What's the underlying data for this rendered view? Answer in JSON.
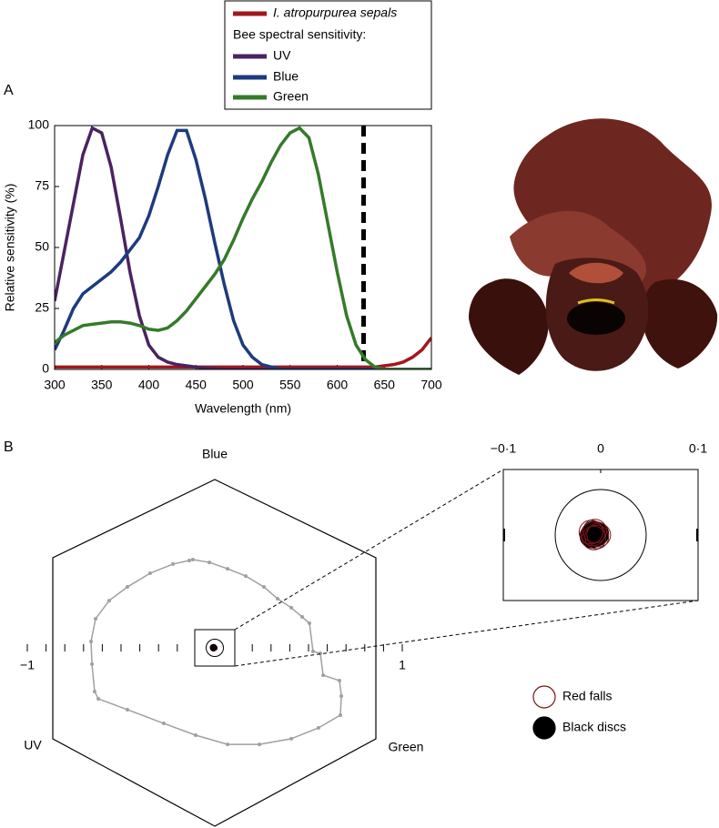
{
  "panels": [
    "A",
    "B"
  ],
  "chart_data": [
    {
      "type": "line",
      "xlabel": "Wavelength (nm)",
      "ylabel": "Relative sensitivity (%)",
      "legend_title": "Bee spectral sensitivity:",
      "x": [
        300,
        310,
        320,
        330,
        340,
        350,
        360,
        370,
        380,
        390,
        400,
        410,
        420,
        430,
        440,
        450,
        460,
        470,
        480,
        490,
        500,
        510,
        520,
        530,
        540,
        550,
        560,
        570,
        580,
        590,
        600,
        610,
        620,
        630,
        640,
        650,
        660,
        670,
        680,
        690,
        700
      ],
      "series": [
        {
          "name": "I. atropurpurea sepals",
          "color": "#a3161b",
          "values": [
            1,
            1,
            1,
            1,
            1,
            1,
            1,
            1,
            1,
            1,
            1,
            1,
            1,
            1,
            1,
            1,
            1,
            1,
            1,
            1,
            1,
            1,
            1,
            1,
            1,
            1,
            1,
            1,
            1,
            1,
            1,
            1,
            1,
            1,
            1,
            1.5,
            2,
            3,
            5,
            8,
            13
          ]
        },
        {
          "name": "UV",
          "color": "#4a2360",
          "values": [
            28,
            48,
            68,
            88,
            99,
            97,
            83,
            62,
            40,
            22,
            10,
            5,
            3,
            2,
            1.5,
            1,
            0.5,
            0.3,
            0,
            0,
            0,
            0,
            0,
            0,
            0,
            0,
            0,
            0,
            0,
            0,
            0,
            0,
            0,
            0,
            0,
            0,
            0,
            0,
            0,
            0,
            0
          ]
        },
        {
          "name": "Blue",
          "color": "#1d3b7d",
          "values": [
            8,
            16,
            25,
            31,
            34,
            37,
            40,
            44,
            49,
            54,
            63,
            75,
            88,
            98,
            98,
            86,
            70,
            52,
            35,
            20,
            10,
            5,
            2,
            1,
            0,
            0,
            0,
            0,
            0,
            0,
            0,
            0,
            0,
            0,
            0,
            0,
            0,
            0,
            0,
            0,
            0
          ]
        },
        {
          "name": "Green",
          "color": "#357a2a",
          "values": [
            11,
            14,
            16,
            18,
            18.5,
            19,
            19.5,
            19.5,
            19,
            18,
            16.5,
            16,
            17,
            20,
            24,
            29,
            34,
            39,
            45,
            53,
            62,
            70,
            77,
            85,
            92,
            97,
            99,
            95,
            80,
            60,
            40,
            22,
            10,
            4,
            1,
            0,
            0,
            0,
            0,
            0,
            0
          ]
        }
      ],
      "vline": 628,
      "xlim": [
        300,
        700
      ],
      "ylim": [
        0,
        100
      ],
      "xticks": [
        300,
        350,
        400,
        450,
        500,
        550,
        600,
        650,
        700
      ],
      "yticks": [
        0,
        25,
        50,
        75,
        100
      ]
    },
    {
      "type": "hexagon",
      "vertex_labels": {
        "top": "Blue",
        "left": "UV",
        "right": "Green"
      },
      "xlim": [
        -1,
        1
      ],
      "xticks": [
        {
          "value": -1,
          "label": "−1"
        },
        1
      ],
      "xminorticks": [
        -0.9,
        -0.8,
        -0.7,
        -0.6,
        -0.5,
        -0.4,
        -0.3,
        -0.2,
        -0.1,
        0,
        0.1,
        0.2,
        0.3,
        0.4,
        0.5,
        0.6,
        0.7,
        0.8,
        0.9
      ],
      "locus": {
        "color": "#a0a0a0",
        "x": [
          -0.136,
          -0.223,
          -0.345,
          -0.466,
          -0.563,
          -0.636,
          -0.66,
          -0.655,
          -0.641,
          -0.621,
          -0.466,
          -0.272,
          -0.102,
          0.068,
          0.238,
          0.408,
          0.553,
          0.67,
          0.675,
          0.665,
          0.578,
          0.563,
          0.524,
          0.505,
          0.466,
          0.408,
          0.335,
          0.262,
          0.165,
          0.068,
          -0.029,
          -0.117
        ],
        "y": [
          0.466,
          0.447,
          0.398,
          0.325,
          0.252,
          0.155,
          0.034,
          -0.087,
          -0.233,
          -0.272,
          -0.33,
          -0.403,
          -0.466,
          -0.515,
          -0.515,
          -0.485,
          -0.427,
          -0.359,
          -0.257,
          -0.175,
          -0.146,
          -0.029,
          -0.019,
          0.131,
          0.165,
          0.214,
          0.262,
          0.325,
          0.383,
          0.422,
          0.456,
          0.471
        ]
      },
      "inset_xlim": [
        -0.1,
        0.1
      ],
      "inset_xticks": [
        {
          "value": -0.1,
          "label": "−0·1"
        },
        0,
        {
          "value": 0.1,
          "label": "0·1"
        }
      ],
      "series": [
        {
          "name": "Red falls",
          "color": "#7a1418",
          "filled": false,
          "x": [
            -0.008,
            -0.004,
            -0.01,
            -0.006,
            -0.002,
            -0.007
          ],
          "y": [
            0.001,
            -0.002,
            0.003,
            0.004,
            0,
            -0.003
          ]
        },
        {
          "name": "Black discs",
          "color": "#000000",
          "filled": true,
          "x": [
            -0.007,
            -0.004,
            -0.009
          ],
          "y": [
            0.002,
            0.001,
            -0.001
          ]
        }
      ]
    }
  ]
}
